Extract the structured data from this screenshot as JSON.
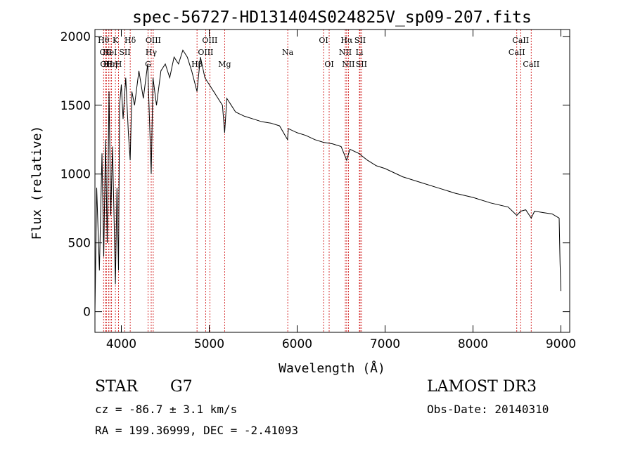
{
  "chart_data": {
    "type": "line",
    "title": "spec-56727-HD131404S024825V_sp09-207.fits",
    "xlabel": "Wavelength (Å)",
    "ylabel": "Flux (relative)",
    "xlim": [
      3700,
      9100
    ],
    "ylim": [
      -150,
      2050
    ],
    "xticks": [
      4000,
      5000,
      6000,
      7000,
      8000,
      9000
    ],
    "yticks": [
      0,
      500,
      1000,
      1500,
      2000
    ],
    "series": [
      {
        "name": "flux",
        "x": [
          3700,
          3720,
          3750,
          3780,
          3800,
          3820,
          3840,
          3860,
          3880,
          3900,
          3920,
          3933,
          3950,
          3968,
          3980,
          4000,
          4020,
          4050,
          4080,
          4101,
          4120,
          4150,
          4200,
          4250,
          4300,
          4340,
          4360,
          4400,
          4450,
          4500,
          4550,
          4600,
          4650,
          4700,
          4750,
          4800,
          4861,
          4900,
          4950,
          5000,
          5050,
          5100,
          5150,
          5175,
          5200,
          5250,
          5300,
          5400,
          5500,
          5600,
          5700,
          5800,
          5890,
          5900,
          6000,
          6100,
          6200,
          6300,
          6400,
          6500,
          6563,
          6600,
          6700,
          6800,
          6900,
          7000,
          7200,
          7400,
          7600,
          7800,
          8000,
          8200,
          8400,
          8498,
          8542,
          8600,
          8662,
          8700,
          8800,
          8900,
          8980,
          8990,
          9000
        ],
        "y": [
          0,
          900,
          300,
          1150,
          400,
          1250,
          500,
          1600,
          700,
          1200,
          600,
          200,
          900,
          300,
          1500,
          1650,
          1400,
          1700,
          1300,
          1100,
          1600,
          1500,
          1750,
          1550,
          1800,
          1000,
          1700,
          1500,
          1750,
          1800,
          1700,
          1850,
          1800,
          1900,
          1850,
          1750,
          1600,
          1850,
          1700,
          1650,
          1600,
          1550,
          1500,
          1300,
          1550,
          1500,
          1450,
          1420,
          1400,
          1380,
          1370,
          1350,
          1250,
          1330,
          1300,
          1280,
          1250,
          1230,
          1220,
          1200,
          1100,
          1180,
          1150,
          1100,
          1060,
          1040,
          980,
          940,
          900,
          860,
          830,
          790,
          760,
          700,
          730,
          740,
          680,
          730,
          720,
          710,
          680,
          350,
          150
        ]
      }
    ],
    "line_markers": [
      {
        "label": "Hθ",
        "x": 3798,
        "row": 1
      },
      {
        "label": "CII",
        "x": 3820,
        "row": 2
      },
      {
        "label": "OII",
        "x": 3830,
        "row": 3
      },
      {
        "label": "Hε",
        "x": 3855,
        "row": 3
      },
      {
        "label": "HeI",
        "x": 3870,
        "row": 2
      },
      {
        "label": "Hη",
        "x": 3889,
        "row": 3
      },
      {
        "label": "K",
        "x": 3933,
        "row": 1
      },
      {
        "label": "H",
        "x": 3968,
        "row": 3
      },
      {
        "label": "SII",
        "x": 4040,
        "row": 2
      },
      {
        "label": "Hδ",
        "x": 4101,
        "row": 1
      },
      {
        "label": "OIII",
        "x": 4363,
        "row": 1
      },
      {
        "label": "Hγ",
        "x": 4340,
        "row": 2
      },
      {
        "label": "G",
        "x": 4304,
        "row": 3
      },
      {
        "label": "Hβ",
        "x": 4861,
        "row": 3
      },
      {
        "label": "OIII",
        "x": 5007,
        "row": 1
      },
      {
        "label": "OIII",
        "x": 4959,
        "row": 2
      },
      {
        "label": "Mg",
        "x": 5175,
        "row": 3
      },
      {
        "label": "Na",
        "x": 5893,
        "row": 2
      },
      {
        "label": "OI",
        "x": 6300,
        "row": 1
      },
      {
        "label": "OI",
        "x": 6364,
        "row": 3
      },
      {
        "label": "Hα",
        "x": 6563,
        "row": 1
      },
      {
        "label": "NII",
        "x": 6548,
        "row": 2
      },
      {
        "label": "NII",
        "x": 6583,
        "row": 3
      },
      {
        "label": "SII",
        "x": 6716,
        "row": 1
      },
      {
        "label": "Li",
        "x": 6708,
        "row": 2
      },
      {
        "label": "SII",
        "x": 6731,
        "row": 3
      },
      {
        "label": "CaII",
        "x": 8542,
        "row": 1
      },
      {
        "label": "CaII",
        "x": 8498,
        "row": 2
      },
      {
        "label": "CaII",
        "x": 8662,
        "row": 3
      }
    ]
  },
  "info": {
    "class_label": "STAR",
    "subclass": "G7",
    "survey": "LAMOST DR3",
    "cz": "cz = -86.7 ± 3.1 km/s",
    "obs_date": "Obs-Date: 20140310",
    "coords": "RA = 199.36999, DEC =  -2.41093"
  }
}
